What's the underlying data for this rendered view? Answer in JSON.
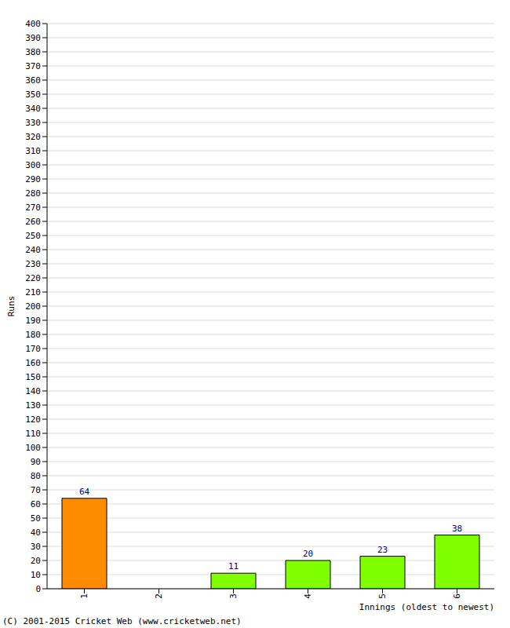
{
  "chart_data": {
    "type": "bar",
    "categories": [
      "1",
      "2",
      "3",
      "4",
      "5",
      "6"
    ],
    "values": [
      64,
      0,
      11,
      20,
      23,
      38
    ],
    "colors": [
      "#ff8c00",
      "#80ff00",
      "#80ff00",
      "#80ff00",
      "#80ff00",
      "#80ff00"
    ],
    "ylim": [
      0,
      400
    ],
    "yticks": [
      0,
      10,
      20,
      30,
      40,
      50,
      60,
      70,
      80,
      90,
      100,
      110,
      120,
      130,
      140,
      150,
      160,
      170,
      180,
      190,
      200,
      210,
      220,
      230,
      240,
      250,
      260,
      270,
      280,
      290,
      300,
      310,
      320,
      330,
      340,
      350,
      360,
      370,
      380,
      390,
      400
    ],
    "grid": true,
    "data_labels": true,
    "xlabel": "Innings (oldest to newest)",
    "ylabel": "Runs",
    "annotation": "(C) 2001-2015 Cricket Web (www.cricketweb.net)"
  }
}
